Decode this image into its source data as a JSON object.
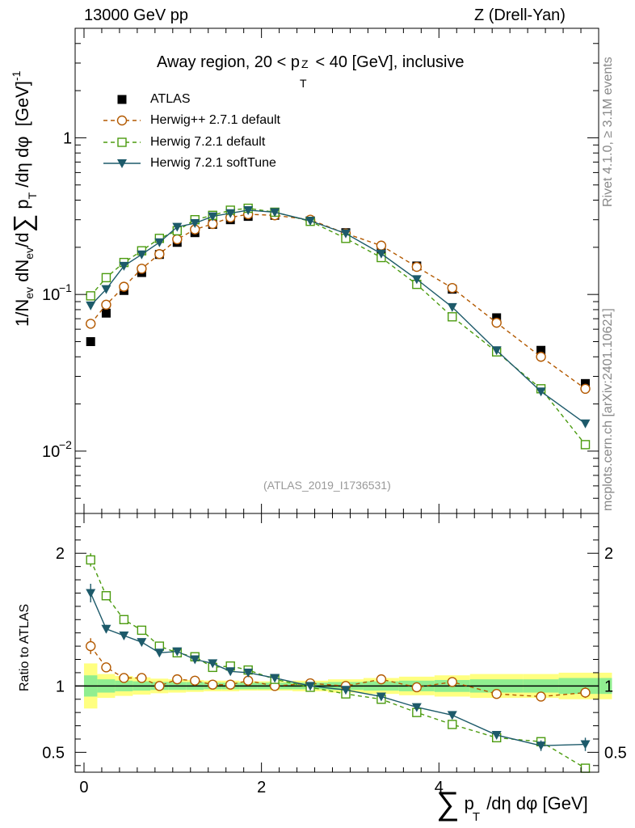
{
  "header": {
    "left": "13000 GeV pp",
    "right": "Z (Drell-Yan)"
  },
  "plot_title": "Away region, 20 < p_T^Z < 40 [GeV], inclusive",
  "plot_title_parts": {
    "a": "Away region, 20 < p",
    "sub": "T",
    "sup": "Z",
    "b": "< 40 [GeV], inclusive"
  },
  "side_labels": {
    "rivet": "Rivet 4.1.0, ≥ 3.1M events",
    "mcplots": "mcplots.cern.ch [arXiv:2401.10621]"
  },
  "analysis_id": "(ATLAS_2019_I1736531)",
  "ylabel_main": "1/N_ev dN_ev/d∑p_T/dη dφ [GeV]^-1",
  "ylabel_ratio": "Ratio to ATLAS",
  "xlabel": "∑ p_T /dη dφ [GeV]",
  "xlabel_parts": {
    "sum": "∑",
    "p": "p",
    "sub": "T",
    "rest": "/dη dφ [GeV]"
  },
  "colors": {
    "herwigpp": "#b35900",
    "herwig721": "#4b9b0f",
    "softtune": "#1d5a6a",
    "band_inner": "#90ee90",
    "band_outer": "#ffff80"
  },
  "chart_data": [
    {
      "type": "scatter",
      "name": "main",
      "yscale": "log",
      "xlim": [
        -0.1,
        5.8
      ],
      "ylim": [
        0.004,
        5.0
      ],
      "x_ticks": [
        0,
        2,
        4
      ],
      "y_ticks": [
        "10^-2",
        "10^-1",
        "1"
      ],
      "legend_position": "top-left",
      "series": [
        {
          "name": "ATLAS",
          "marker": "filled-square",
          "x": [
            0.075,
            0.25,
            0.45,
            0.65,
            0.85,
            1.05,
            1.25,
            1.45,
            1.65,
            1.85,
            2.15,
            2.55,
            2.95,
            3.35,
            3.75,
            4.15,
            4.65,
            5.15,
            5.65
          ],
          "y": [
            0.05,
            0.076,
            0.106,
            0.138,
            0.18,
            0.215,
            0.248,
            0.28,
            0.3,
            0.315,
            0.32,
            0.295,
            0.248,
            0.195,
            0.152,
            0.108,
            0.071,
            0.044,
            0.027
          ]
        },
        {
          "name": "Herwig++ 2.7.1 default",
          "marker": "open-circle",
          "style": "dashed",
          "x": [
            0.075,
            0.25,
            0.45,
            0.65,
            0.85,
            1.05,
            1.25,
            1.45,
            1.65,
            1.85,
            2.15,
            2.55,
            2.95,
            3.35,
            3.75,
            4.15,
            4.65,
            5.15,
            5.65
          ],
          "y": [
            0.065,
            0.086,
            0.112,
            0.146,
            0.181,
            0.225,
            0.26,
            0.282,
            0.31,
            0.325,
            0.32,
            0.3,
            0.245,
            0.205,
            0.15,
            0.11,
            0.066,
            0.04,
            0.025
          ]
        },
        {
          "name": "Herwig 7.2.1 default",
          "marker": "open-square",
          "style": "dashed",
          "x": [
            0.075,
            0.25,
            0.45,
            0.65,
            0.85,
            1.05,
            1.25,
            1.45,
            1.65,
            1.85,
            2.15,
            2.55,
            2.95,
            3.35,
            3.75,
            4.15,
            4.65,
            5.15,
            5.65
          ],
          "y": [
            0.098,
            0.128,
            0.16,
            0.19,
            0.228,
            0.255,
            0.3,
            0.32,
            0.345,
            0.355,
            0.335,
            0.293,
            0.228,
            0.172,
            0.116,
            0.072,
            0.043,
            0.025,
            0.011
          ]
        },
        {
          "name": "Herwig 7.2.1 softTune",
          "marker": "filled-triangle-down",
          "style": "solid",
          "x": [
            0.075,
            0.25,
            0.45,
            0.65,
            0.85,
            1.05,
            1.25,
            1.45,
            1.65,
            1.85,
            2.15,
            2.55,
            2.95,
            3.35,
            3.75,
            4.15,
            4.65,
            5.15,
            5.65
          ],
          "y": [
            0.085,
            0.108,
            0.152,
            0.18,
            0.215,
            0.27,
            0.285,
            0.315,
            0.33,
            0.345,
            0.335,
            0.295,
            0.245,
            0.182,
            0.125,
            0.083,
            0.044,
            0.024,
            0.015
          ]
        }
      ]
    },
    {
      "type": "scatter",
      "name": "ratio",
      "ylabel": "Ratio to ATLAS",
      "xlim": [
        -0.1,
        5.8
      ],
      "ylim": [
        0.35,
        2.3
      ],
      "y_ticks": [
        0.5,
        1,
        2
      ],
      "band_edges": [
        0,
        0.15,
        0.35,
        0.55,
        0.75,
        0.95,
        1.15,
        1.35,
        1.55,
        1.75,
        1.95,
        2.35,
        2.75,
        3.15,
        3.55,
        3.95,
        4.35,
        4.95,
        5.35,
        5.95
      ],
      "band_inner": [
        0.08,
        0.05,
        0.04,
        0.035,
        0.03,
        0.03,
        0.03,
        0.025,
        0.025,
        0.025,
        0.025,
        0.025,
        0.03,
        0.035,
        0.04,
        0.045,
        0.05,
        0.05,
        0.06
      ],
      "band_outer": [
        0.17,
        0.09,
        0.075,
        0.065,
        0.055,
        0.05,
        0.045,
        0.04,
        0.04,
        0.035,
        0.035,
        0.04,
        0.05,
        0.06,
        0.07,
        0.08,
        0.09,
        0.09,
        0.1
      ],
      "series": [
        {
          "name": "Herwig++ 2.7.1 default",
          "x": [
            0.075,
            0.25,
            0.45,
            0.65,
            0.85,
            1.05,
            1.25,
            1.45,
            1.65,
            1.85,
            2.15,
            2.55,
            2.95,
            3.35,
            3.75,
            4.15,
            4.65,
            5.15,
            5.65
          ],
          "y": [
            1.3,
            1.14,
            1.06,
            1.06,
            1.0,
            1.05,
            1.04,
            1.01,
            1.01,
            1.04,
            1.0,
            1.02,
            1.0,
            1.05,
            0.99,
            1.03,
            0.94,
            0.92,
            0.95
          ],
          "err": [
            0.06,
            0.03,
            0.02,
            0.02,
            0.02,
            0.02,
            0.02,
            0.02,
            0.02,
            0.02,
            0.02,
            0.02,
            0.02,
            0.02,
            0.02,
            0.02,
            0.02,
            0.02,
            0.04
          ]
        },
        {
          "name": "Herwig 7.2.1 default",
          "x": [
            0.075,
            0.25,
            0.45,
            0.65,
            0.85,
            1.05,
            1.25,
            1.45,
            1.65,
            1.85,
            2.15,
            2.55,
            2.95,
            3.35,
            3.75,
            4.15,
            4.65,
            5.15,
            5.65
          ],
          "y": [
            1.95,
            1.68,
            1.5,
            1.42,
            1.3,
            1.25,
            1.22,
            1.14,
            1.15,
            1.12,
            1.05,
            0.99,
            0.94,
            0.9,
            0.8,
            0.71,
            0.61,
            0.58,
            0.38
          ],
          "err": [
            0.05,
            0.03,
            0.03,
            0.02,
            0.02,
            0.02,
            0.02,
            0.02,
            0.02,
            0.02,
            0.02,
            0.02,
            0.02,
            0.02,
            0.02,
            0.02,
            0.02,
            0.03,
            0.03
          ]
        },
        {
          "name": "Herwig 7.2.1 softTune",
          "x": [
            0.075,
            0.25,
            0.45,
            0.65,
            0.85,
            1.05,
            1.25,
            1.45,
            1.65,
            1.85,
            2.15,
            2.55,
            2.95,
            3.35,
            3.75,
            4.15,
            4.65,
            5.15,
            5.65
          ],
          "y": [
            1.7,
            1.43,
            1.38,
            1.33,
            1.25,
            1.26,
            1.2,
            1.17,
            1.11,
            1.1,
            1.06,
            1.0,
            0.97,
            0.92,
            0.84,
            0.78,
            0.63,
            0.55,
            0.56
          ],
          "err": [
            0.07,
            0.03,
            0.03,
            0.02,
            0.02,
            0.02,
            0.02,
            0.02,
            0.02,
            0.02,
            0.02,
            0.02,
            0.02,
            0.02,
            0.02,
            0.02,
            0.02,
            0.04,
            0.05
          ]
        }
      ]
    }
  ]
}
